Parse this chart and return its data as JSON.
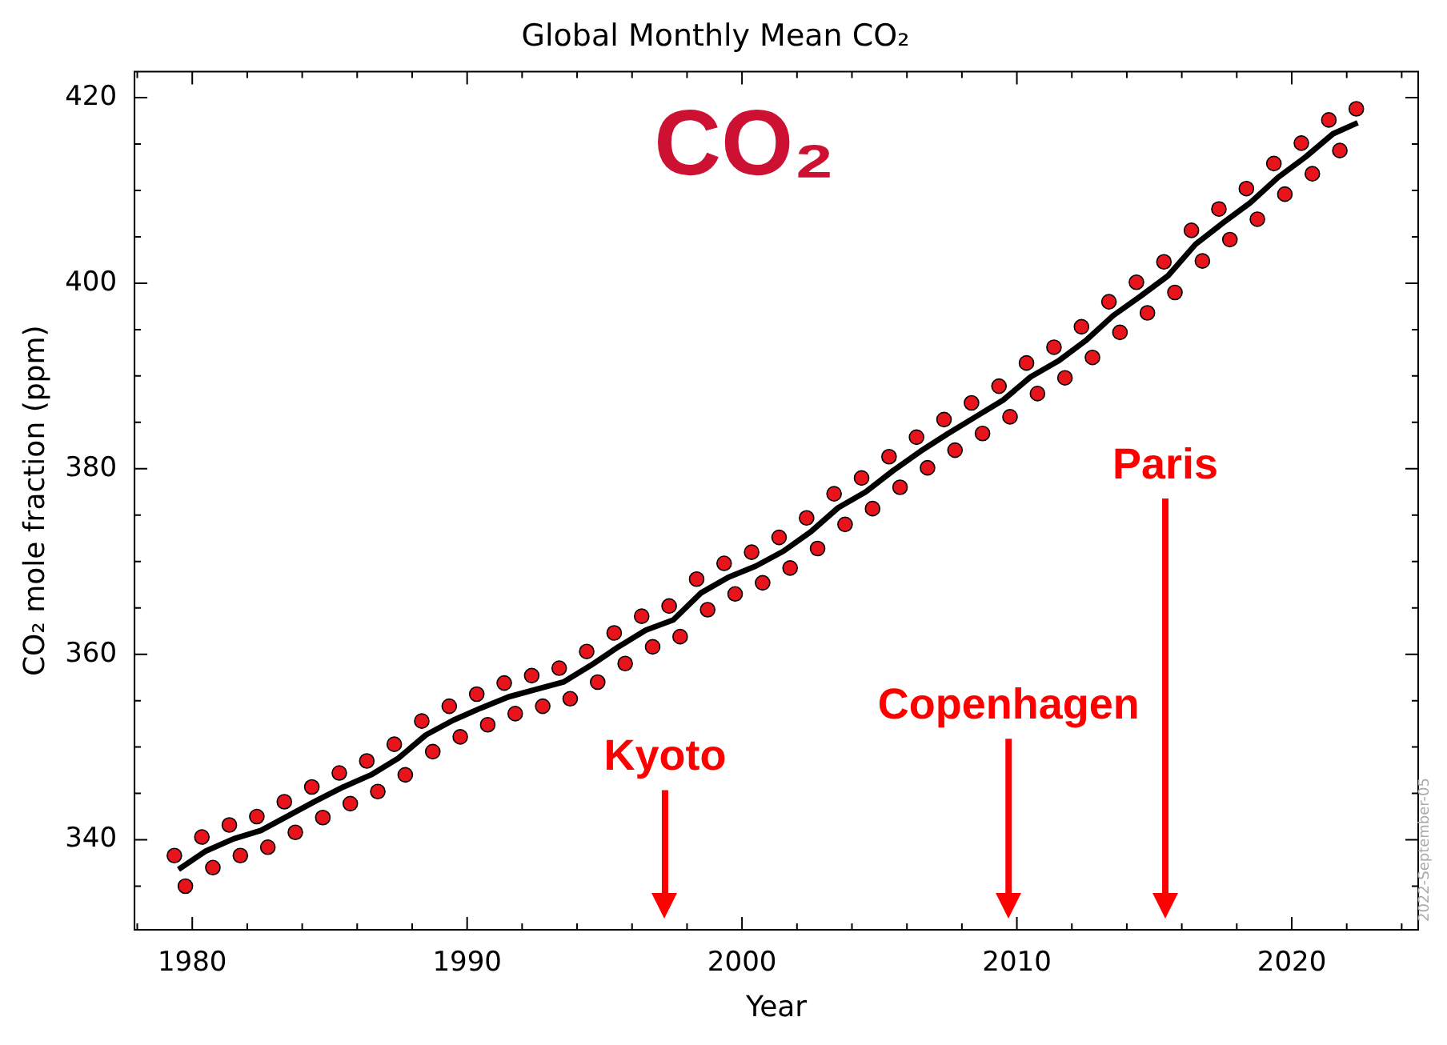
{
  "chart_data": {
    "type": "scatter",
    "title": "Global Monthly Mean CO₂",
    "xlabel": "Year",
    "ylabel": "CO₂ mole fraction (ppm)",
    "xlim": [
      1977.9,
      2024.6
    ],
    "ylim": [
      330.3,
      422.8
    ],
    "xticks": [
      {
        "value": 1978,
        "label": null
      },
      1980,
      {
        "value": 1982,
        "label": null
      },
      {
        "value": 1984,
        "label": null
      },
      {
        "value": 1986,
        "label": null
      },
      {
        "value": 1988,
        "label": null
      },
      1990,
      {
        "value": 1992,
        "label": null
      },
      {
        "value": 1994,
        "label": null
      },
      {
        "value": 1996,
        "label": null
      },
      {
        "value": 1998,
        "label": null
      },
      2000,
      {
        "value": 2002,
        "label": null
      },
      {
        "value": 2004,
        "label": null
      },
      {
        "value": 2006,
        "label": null
      },
      {
        "value": 2008,
        "label": null
      },
      2010,
      {
        "value": 2012,
        "label": null
      },
      {
        "value": 2014,
        "label": null
      },
      {
        "value": 2016,
        "label": null
      },
      {
        "value": 2018,
        "label": null
      },
      2020,
      {
        "value": 2022,
        "label": null
      },
      {
        "value": 2024,
        "label": null
      }
    ],
    "yticks": [
      {
        "value": 335,
        "label": null
      },
      340,
      {
        "value": 345,
        "label": null
      },
      {
        "value": 350,
        "label": null
      },
      {
        "value": 355,
        "label": null
      },
      360,
      {
        "value": 365,
        "label": null
      },
      {
        "value": 370,
        "label": null
      },
      {
        "value": 375,
        "label": null
      },
      380,
      {
        "value": 385,
        "label": null
      },
      {
        "value": 390,
        "label": null
      },
      {
        "value": 395,
        "label": null
      },
      400,
      {
        "value": 405,
        "label": null
      },
      {
        "value": 410,
        "label": null
      },
      {
        "value": 415,
        "label": null
      },
      420
    ],
    "legend": false,
    "series": [
      {
        "type": "scatter",
        "color": "#e8141b",
        "marker": "circle",
        "x": [
          1979.35,
          1979.75,
          1980.35,
          1980.75,
          1981.35,
          1981.75,
          1982.35,
          1982.75,
          1983.35,
          1983.75,
          1984.35,
          1984.75,
          1985.35,
          1985.75,
          1986.35,
          1986.75,
          1987.35,
          1987.75,
          1988.35,
          1988.75,
          1989.35,
          1989.75,
          1990.35,
          1990.75,
          1991.35,
          1991.75,
          1992.35,
          1992.75,
          1993.35,
          1993.75,
          1994.35,
          1994.75,
          1995.35,
          1995.75,
          1996.35,
          1996.75,
          1997.35,
          1997.75,
          1998.35,
          1998.75,
          1999.35,
          1999.75,
          2000.35,
          2000.75,
          2001.35,
          2001.75,
          2002.35,
          2002.75,
          2003.35,
          2003.75,
          2004.35,
          2004.75,
          2005.35,
          2005.75,
          2006.35,
          2006.75,
          2007.35,
          2007.75,
          2008.35,
          2008.75,
          2009.35,
          2009.75,
          2010.35,
          2010.75,
          2011.35,
          2011.75,
          2012.35,
          2012.75,
          2013.35,
          2013.75,
          2014.35,
          2014.75,
          2015.35,
          2015.75,
          2016.35,
          2016.75,
          2017.35,
          2017.75,
          2018.35,
          2018.75,
          2019.35,
          2019.75,
          2020.35,
          2020.75,
          2021.35,
          2021.75,
          2022.35
        ],
        "values": [
          338.3,
          335.0,
          340.3,
          337.0,
          341.6,
          338.3,
          342.5,
          339.2,
          344.1,
          340.8,
          345.7,
          342.4,
          347.2,
          343.9,
          348.5,
          345.2,
          350.3,
          347.0,
          352.8,
          349.5,
          354.4,
          351.1,
          355.7,
          352.4,
          356.9,
          353.6,
          357.7,
          354.4,
          358.5,
          355.2,
          360.3,
          357.0,
          362.3,
          359.0,
          364.1,
          360.8,
          365.2,
          361.9,
          368.1,
          364.8,
          369.8,
          366.5,
          371.0,
          367.7,
          372.6,
          369.3,
          374.7,
          371.4,
          377.3,
          374.0,
          379.0,
          375.7,
          381.3,
          378.0,
          383.4,
          380.1,
          385.3,
          382.0,
          387.1,
          383.8,
          388.9,
          385.6,
          391.4,
          388.1,
          393.1,
          389.8,
          395.3,
          392.0,
          398.0,
          394.7,
          400.1,
          396.8,
          402.3,
          399.0,
          405.7,
          402.4,
          408.0,
          404.7,
          410.2,
          406.9,
          412.9,
          409.6,
          415.1,
          411.8,
          417.6,
          414.3,
          418.8
        ]
      },
      {
        "type": "line",
        "color": "#000000",
        "marker": "none",
        "x": [
          1979.5,
          1980.5,
          1981.5,
          1982.5,
          1983.5,
          1984.5,
          1985.5,
          1986.5,
          1987.5,
          1988.5,
          1989.5,
          1990.5,
          1991.5,
          1992.5,
          1993.5,
          1994.5,
          1995.5,
          1996.5,
          1997.5,
          1998.5,
          1999.5,
          2000.5,
          2001.5,
          2002.5,
          2003.5,
          2004.5,
          2005.5,
          2006.5,
          2007.5,
          2008.5,
          2009.5,
          2010.5,
          2011.5,
          2012.5,
          2013.5,
          2014.5,
          2015.5,
          2016.5,
          2017.5,
          2018.5,
          2019.5,
          2020.5,
          2021.5,
          2022.4
        ],
        "values": [
          336.8,
          338.8,
          340.1,
          341.0,
          342.6,
          344.2,
          345.7,
          347.0,
          348.8,
          351.3,
          352.9,
          354.2,
          355.4,
          356.2,
          357.0,
          358.8,
          360.8,
          362.6,
          363.7,
          366.6,
          368.3,
          369.5,
          371.1,
          373.2,
          375.8,
          377.5,
          379.8,
          381.9,
          383.8,
          385.6,
          387.4,
          389.9,
          391.6,
          393.8,
          396.5,
          398.6,
          400.8,
          404.2,
          406.5,
          408.7,
          411.4,
          413.6,
          416.1,
          417.3
        ]
      }
    ],
    "annotations": [
      "CO₂",
      "2022-September-05"
    ],
    "ref_lines": [
      {
        "axis": "x",
        "value": 1997.2,
        "label": "Kyoto",
        "color": "#ff0000"
      },
      {
        "axis": "x",
        "value": 2009.7,
        "label": "Copenhagen",
        "color": "#ff0000"
      },
      {
        "axis": "x",
        "value": 2015.4,
        "label": "Paris",
        "color": "#ff0000"
      }
    ]
  }
}
